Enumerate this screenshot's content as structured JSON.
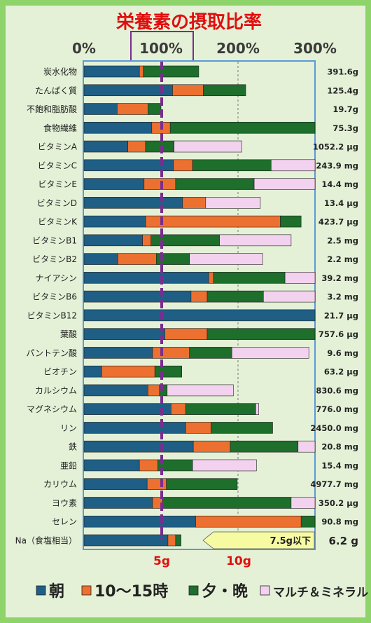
{
  "chart_data": {
    "type": "bar",
    "title": "栄養素の摂取比率",
    "x_ticks": [
      "0%",
      "100%",
      "200%",
      "300%"
    ],
    "xlim": [
      0,
      300
    ],
    "series": [
      {
        "name": "朝",
        "color": "#1f5f86"
      },
      {
        "name": "10〜15時",
        "color": "#ec7130"
      },
      {
        "name": "夕・晩",
        "color": "#1e6e2c"
      },
      {
        "name": "マルチ＆ミネラル",
        "color": "#f2d2ef"
      }
    ],
    "rows": [
      {
        "label": "炭水化物",
        "amount": "391.6g",
        "values": [
          72,
          5,
          72,
          0
        ]
      },
      {
        "label": "たんぱく質",
        "amount": "125.4g",
        "values": [
          115,
          40,
          55,
          0
        ]
      },
      {
        "label": "不飽和脂肪酸",
        "amount": "19.7g",
        "values": [
          43,
          40,
          17,
          0
        ]
      },
      {
        "label": "食物繊維",
        "amount": "75.3g",
        "values": [
          88,
          24,
          188,
          0
        ]
      },
      {
        "label": "ビタミンA",
        "amount": "1052.2 μg",
        "values": [
          57,
          23,
          37,
          88
        ]
      },
      {
        "label": "ビタミンC",
        "amount": "243.9 mg",
        "values": [
          116,
          25,
          102,
          57
        ]
      },
      {
        "label": "ビタミンE",
        "amount": "14.4 mg",
        "values": [
          78,
          41,
          102,
          79
        ]
      },
      {
        "label": "ビタミンD",
        "amount": "13.4 μg",
        "values": [
          128,
          30,
          0,
          71
        ]
      },
      {
        "label": "ビタミンK",
        "amount": "423.7 μg",
        "values": [
          80,
          175,
          27,
          0
        ]
      },
      {
        "label": "ビタミンB1",
        "amount": "2.5 mg",
        "values": [
          76,
          11,
          89,
          93
        ]
      },
      {
        "label": "ビタミンB2",
        "amount": "2.2 mg",
        "values": [
          44,
          50,
          43,
          95
        ]
      },
      {
        "label": "ナイアシン",
        "amount": "39.2 mg",
        "values": [
          162,
          6,
          93,
          39
        ]
      },
      {
        "label": "ビタミンB6",
        "amount": "3.2 mg",
        "values": [
          139,
          21,
          73,
          67
        ]
      },
      {
        "label": "ビタミンB12",
        "amount": "21.7 μg",
        "values": [
          300,
          0,
          0,
          0
        ]
      },
      {
        "label": "葉酸",
        "amount": "757.6 μg",
        "values": [
          105,
          55,
          140,
          0
        ]
      },
      {
        "label": "パントテン酸",
        "amount": "9.6 mg",
        "values": [
          89,
          48,
          55,
          100
        ]
      },
      {
        "label": "ビオチン",
        "amount": "63.2 μg",
        "values": [
          23,
          69,
          35,
          0
        ]
      },
      {
        "label": "カルシウム",
        "amount": "830.6 mg",
        "values": [
          83,
          15,
          10,
          86
        ]
      },
      {
        "label": "マグネシウム",
        "amount": "776.0 mg",
        "values": [
          113,
          19,
          91,
          4
        ]
      },
      {
        "label": "リン",
        "amount": "2450.0 mg",
        "values": [
          132,
          33,
          80,
          0
        ]
      },
      {
        "label": "鉄",
        "amount": "20.8 mg",
        "values": [
          142,
          48,
          88,
          22
        ]
      },
      {
        "label": "亜鉛",
        "amount": "15.4 mg",
        "values": [
          72,
          24,
          45,
          83
        ]
      },
      {
        "label": "カリウム",
        "amount": "4977.7 mg",
        "values": [
          82,
          25,
          92,
          0
        ]
      },
      {
        "label": "ヨウ素",
        "amount": "350.2 μg",
        "values": [
          89,
          13,
          167,
          31
        ]
      },
      {
        "label": "セレン",
        "amount": "90.8 mg",
        "values": [
          145,
          137,
          18,
          0
        ]
      },
      {
        "label": "Na（食塩相当）",
        "amount": "6.2 g",
        "values": [
          109,
          10,
          7,
          0
        ]
      }
    ],
    "sodium_ticks": [
      "5g",
      "10g"
    ],
    "sodium_target": "7.5g以下"
  }
}
